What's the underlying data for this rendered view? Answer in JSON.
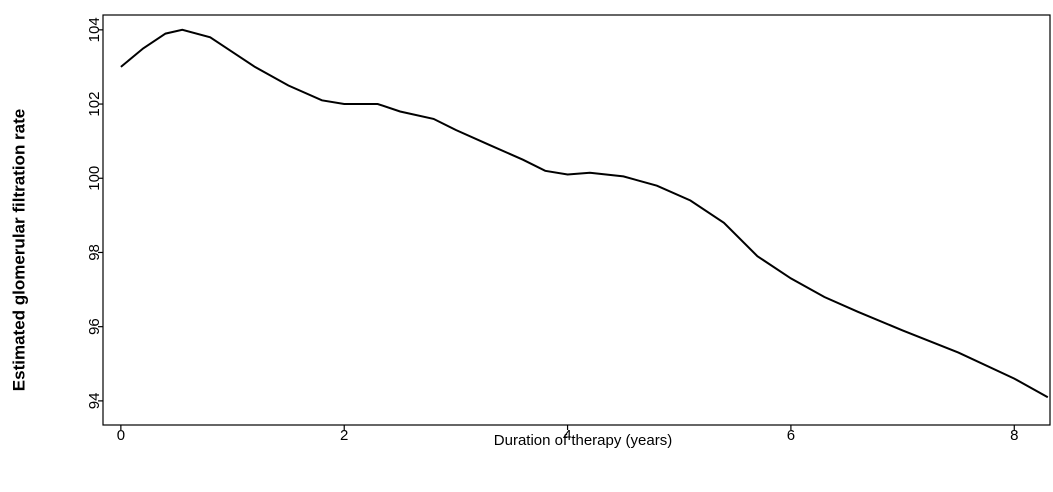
{
  "chart_data": {
    "type": "line",
    "x_label": "Duration of therapy (years)",
    "y_label": "Estimated glomerular filtration rate",
    "x": [
      0,
      0.2,
      0.4,
      0.55,
      0.8,
      1.0,
      1.2,
      1.5,
      1.8,
      2.0,
      2.3,
      2.5,
      2.8,
      3.0,
      3.3,
      3.6,
      3.8,
      4.0,
      4.2,
      4.5,
      4.8,
      5.1,
      5.4,
      5.7,
      6.0,
      6.3,
      6.6,
      7.0,
      7.5,
      8.0,
      8.3
    ],
    "series": [
      {
        "color": "#000000",
        "values": [
          103,
          103.5,
          103.9,
          104,
          103.8,
          103.4,
          103.0,
          102.5,
          102.1,
          102.0,
          102.0,
          101.8,
          101.6,
          101.3,
          100.9,
          100.5,
          100.2,
          100.1,
          100.15,
          100.05,
          99.8,
          99.4,
          98.8,
          97.9,
          97.3,
          96.8,
          96.4,
          95.9,
          95.3,
          94.6,
          94.1
        ]
      }
    ],
    "xlim": [
      -0.16,
      8.32
    ],
    "xticks": [
      0,
      2,
      4,
      6,
      8
    ],
    "ylim": [
      93.35,
      104.4
    ],
    "yticks": [
      94,
      96,
      98,
      100,
      102,
      104
    ],
    "grid": false
  }
}
